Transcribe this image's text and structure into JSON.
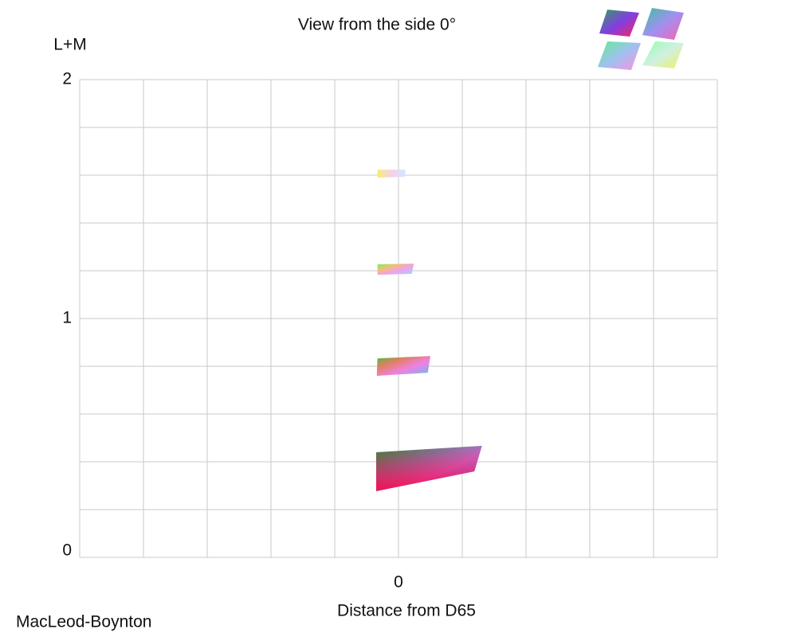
{
  "chart_data": {
    "type": "polygon",
    "title": "View from the side 0°",
    "y_label": "L+M",
    "x_label": "Distance from D65",
    "footer": "MacLeod-Boynton",
    "xlim": [
      -5,
      5
    ],
    "ylim": [
      0,
      2
    ],
    "xticks": [
      0
    ],
    "yticks": [
      0,
      1,
      2
    ],
    "xgrid": [
      -5,
      -4,
      -3,
      -2,
      -1,
      0,
      1,
      2,
      3,
      4,
      5
    ],
    "ygrid": [
      0,
      0.2,
      0.4,
      0.6,
      0.8,
      1,
      1.2,
      1.4,
      1.6,
      1.8,
      2
    ],
    "grid": true,
    "slices": [
      {
        "x": [
          -0.35,
          1.31,
          1.19,
          -0.35
        ],
        "y": [
          0.44,
          0.467,
          0.36,
          0.277
        ]
      },
      {
        "x": [
          -0.33,
          0.5,
          0.46,
          -0.34
        ],
        "y": [
          0.833,
          0.843,
          0.773,
          0.76
        ]
      },
      {
        "x": [
          -0.33,
          0.24,
          0.21,
          -0.33
        ],
        "y": [
          1.227,
          1.23,
          1.187,
          1.183
        ]
      },
      {
        "x": [
          -0.33,
          0.11,
          0.1,
          -0.33
        ],
        "y": [
          1.623,
          1.623,
          1.593,
          1.59
        ]
      }
    ]
  }
}
